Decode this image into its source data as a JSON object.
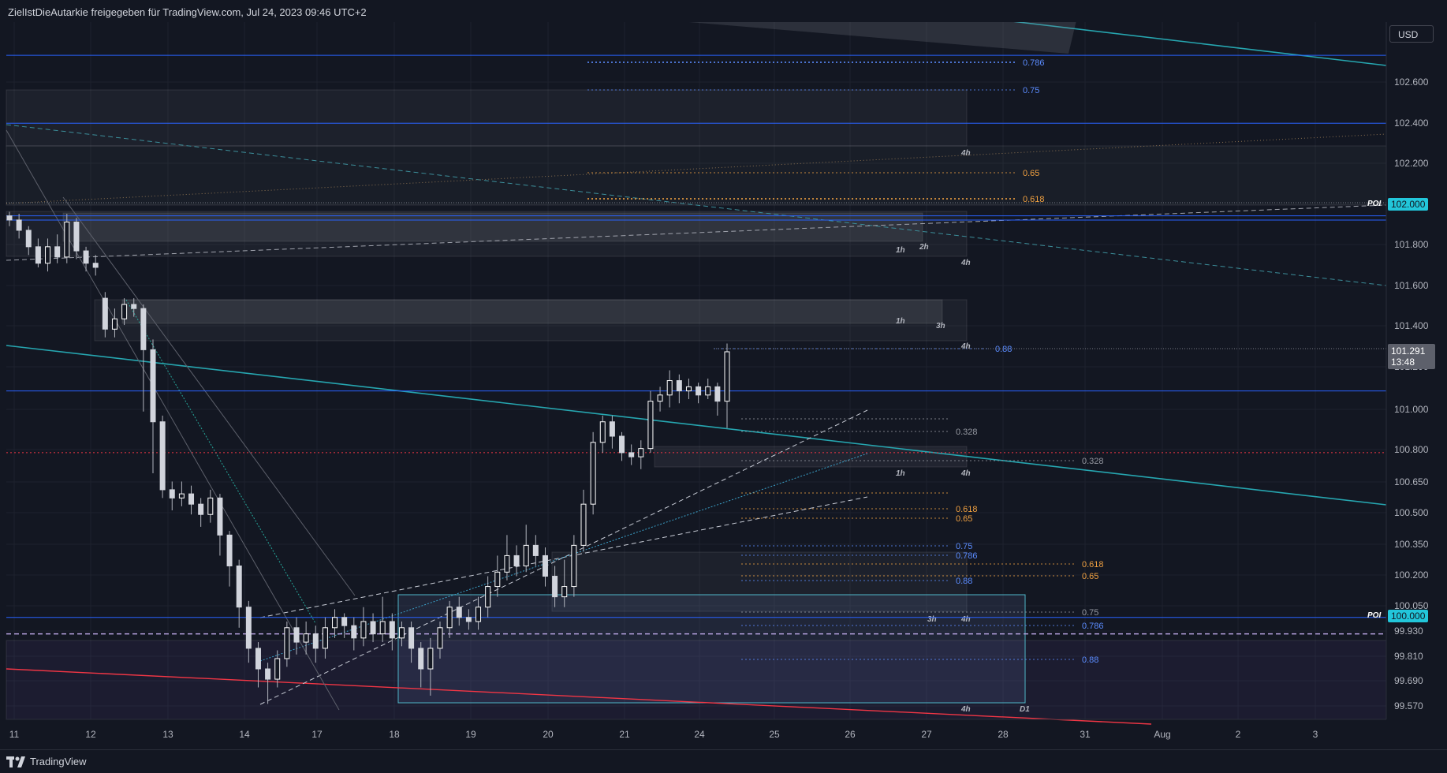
{
  "header": {
    "attribution": "ZielIstDieAutarkie freigegeben für TradingView.com, Jul 24, 2023 09:46 UTC+2"
  },
  "footer": {
    "brand": "TradingView"
  },
  "price_axis": {
    "currency": "USD",
    "current_price": "101.291",
    "countdown": "13:48",
    "poi_label": "POI",
    "poi_prices": [
      "102.000",
      "100.000"
    ]
  },
  "colors": {
    "background": "#131722",
    "blue_level": "#2962ff",
    "teal_trend": "#26a6b0",
    "red_level": "#f23645",
    "poi_badge": "#22c6da",
    "fib_orange": "#f0a040",
    "fib_blue": "#5b8cff"
  },
  "chart_data": {
    "type": "candlestick",
    "timeframe_labels_on_zones": [
      "1h",
      "2h",
      "3h",
      "4h",
      "D1"
    ],
    "x_axis": {
      "tick_labels": [
        "11",
        "12",
        "13",
        "14",
        "17",
        "18",
        "19",
        "20",
        "21",
        "24",
        "25",
        "26",
        "27",
        "28",
        "31",
        "Aug",
        "2",
        "3"
      ]
    },
    "y_axis": {
      "tick_labels": [
        "102.600",
        "102.400",
        "102.200",
        "102.000",
        "101.800",
        "101.600",
        "101.400",
        "101.200",
        "101.000",
        "100.800",
        "100.650",
        "100.500",
        "100.350",
        "100.200",
        "100.050",
        "99.930",
        "99.810",
        "99.690",
        "99.570"
      ],
      "range": [
        99.5,
        102.8
      ]
    },
    "horizontal_levels": [
      {
        "price": 102.73,
        "color": "blue"
      },
      {
        "price": 102.4,
        "color": "blue"
      },
      {
        "price": 101.95,
        "color": "blue"
      },
      {
        "price": 101.1,
        "color": "blue"
      },
      {
        "price": 100.8,
        "color": "red-dotted"
      },
      {
        "price": 100.0,
        "color": "blue"
      },
      {
        "price": 99.92,
        "color": "violet-dashed"
      }
    ],
    "fib_labels": [
      "0.786",
      "0.75",
      "0.65",
      "0.618",
      "0.88",
      "0.328",
      "0.328",
      "0.618",
      "0.65",
      "0.75",
      "0.786",
      "0.618",
      "0.65",
      "0.88",
      "0.75",
      "0.786",
      "0.88"
    ],
    "candles": [
      [
        0,
        101.95,
        101.93,
        101.97,
        101.9
      ],
      [
        1,
        101.93,
        101.88,
        101.96,
        101.84
      ],
      [
        2,
        101.88,
        101.8,
        101.9,
        101.76
      ],
      [
        3,
        101.8,
        101.72,
        101.84,
        101.7
      ],
      [
        4,
        101.72,
        101.8,
        101.84,
        101.68
      ],
      [
        5,
        101.8,
        101.75,
        101.86,
        101.72
      ],
      [
        6,
        101.75,
        101.92,
        101.96,
        101.72
      ],
      [
        7,
        101.92,
        101.78,
        101.94,
        101.74
      ],
      [
        8,
        101.78,
        101.72,
        101.8,
        101.68
      ],
      [
        9,
        101.72,
        101.7,
        101.76,
        101.66
      ],
      [
        10,
        101.55,
        101.4,
        101.58,
        101.36
      ],
      [
        11,
        101.4,
        101.45,
        101.5,
        101.36
      ],
      [
        12,
        101.45,
        101.52,
        101.55,
        101.42
      ],
      [
        13,
        101.52,
        101.5,
        101.55,
        101.46
      ],
      [
        14,
        101.5,
        101.3,
        101.52,
        101.0
      ],
      [
        15,
        101.3,
        100.95,
        101.35,
        100.7
      ],
      [
        16,
        100.95,
        100.62,
        100.98,
        100.58
      ],
      [
        17,
        100.62,
        100.58,
        100.66,
        100.52
      ],
      [
        18,
        100.58,
        100.6,
        100.66,
        100.54
      ],
      [
        19,
        100.6,
        100.55,
        100.64,
        100.5
      ],
      [
        20,
        100.55,
        100.5,
        100.58,
        100.44
      ],
      [
        21,
        100.5,
        100.58,
        100.62,
        100.46
      ],
      [
        22,
        100.58,
        100.4,
        100.6,
        100.3
      ],
      [
        23,
        100.4,
        100.25,
        100.42,
        100.15
      ],
      [
        24,
        100.25,
        100.05,
        100.28,
        99.95
      ],
      [
        25,
        100.05,
        99.85,
        100.08,
        99.78
      ],
      [
        26,
        99.85,
        99.75,
        99.88,
        99.66
      ],
      [
        27,
        99.75,
        99.7,
        99.78,
        99.58
      ],
      [
        28,
        99.7,
        99.8,
        99.84,
        99.66
      ],
      [
        29,
        99.8,
        99.95,
        99.98,
        99.76
      ],
      [
        30,
        99.95,
        99.88,
        100.0,
        99.82
      ],
      [
        31,
        99.88,
        99.92,
        99.98,
        99.82
      ],
      [
        32,
        99.92,
        99.85,
        99.96,
        99.78
      ],
      [
        33,
        99.85,
        99.95,
        100.0,
        99.8
      ],
      [
        34,
        99.95,
        100.0,
        100.04,
        99.9
      ],
      [
        35,
        100.0,
        99.96,
        100.02,
        99.9
      ],
      [
        36,
        99.96,
        99.9,
        100.0,
        99.84
      ],
      [
        37,
        99.9,
        99.98,
        100.05,
        99.86
      ],
      [
        38,
        99.98,
        99.92,
        100.02,
        99.88
      ],
      [
        39,
        99.92,
        99.98,
        100.1,
        99.88
      ],
      [
        40,
        99.98,
        99.9,
        100.02,
        99.84
      ],
      [
        41,
        99.9,
        99.95,
        99.98,
        99.86
      ],
      [
        42,
        99.95,
        99.85,
        99.98,
        99.78
      ],
      [
        43,
        99.85,
        99.75,
        99.88,
        99.66
      ],
      [
        44,
        99.75,
        99.85,
        99.9,
        99.62
      ],
      [
        45,
        99.85,
        99.95,
        99.98,
        99.8
      ],
      [
        46,
        99.95,
        100.05,
        100.08,
        99.9
      ],
      [
        47,
        100.05,
        100.0,
        100.1,
        99.96
      ],
      [
        48,
        100.0,
        99.98,
        100.04,
        99.94
      ],
      [
        49,
        99.98,
        100.05,
        100.1,
        99.94
      ],
      [
        50,
        100.05,
        100.15,
        100.2,
        100.0
      ],
      [
        51,
        100.15,
        100.22,
        100.3,
        100.1
      ],
      [
        52,
        100.22,
        100.3,
        100.4,
        100.18
      ],
      [
        53,
        100.3,
        100.25,
        100.35,
        100.2
      ],
      [
        54,
        100.25,
        100.35,
        100.45,
        100.22
      ],
      [
        55,
        100.35,
        100.3,
        100.4,
        100.25
      ],
      [
        56,
        100.3,
        100.2,
        100.34,
        100.15
      ],
      [
        57,
        100.2,
        100.1,
        100.25,
        100.05
      ],
      [
        58,
        100.1,
        100.15,
        100.28,
        100.05
      ],
      [
        59,
        100.15,
        100.35,
        100.4,
        100.1
      ],
      [
        60,
        100.35,
        100.55,
        100.62,
        100.32
      ],
      [
        61,
        100.55,
        100.85,
        100.9,
        100.5
      ],
      [
        62,
        100.85,
        100.95,
        100.98,
        100.8
      ],
      [
        63,
        100.95,
        100.88,
        100.98,
        100.82
      ],
      [
        64,
        100.88,
        100.8,
        100.9,
        100.76
      ],
      [
        65,
        100.8,
        100.78,
        100.84,
        100.74
      ],
      [
        66,
        100.78,
        100.82,
        100.86,
        100.72
      ],
      [
        67,
        100.82,
        101.05,
        101.1,
        100.8
      ],
      [
        68,
        101.05,
        101.08,
        101.12,
        101.0
      ],
      [
        69,
        101.08,
        101.15,
        101.2,
        101.02
      ],
      [
        70,
        101.15,
        101.1,
        101.18,
        101.04
      ],
      [
        71,
        101.1,
        101.12,
        101.16,
        101.06
      ],
      [
        72,
        101.12,
        101.08,
        101.14,
        101.04
      ],
      [
        73,
        101.08,
        101.12,
        101.16,
        101.06
      ],
      [
        74,
        101.12,
        101.05,
        101.14,
        100.98
      ],
      [
        75,
        101.05,
        101.29,
        101.33,
        100.92
      ]
    ]
  }
}
